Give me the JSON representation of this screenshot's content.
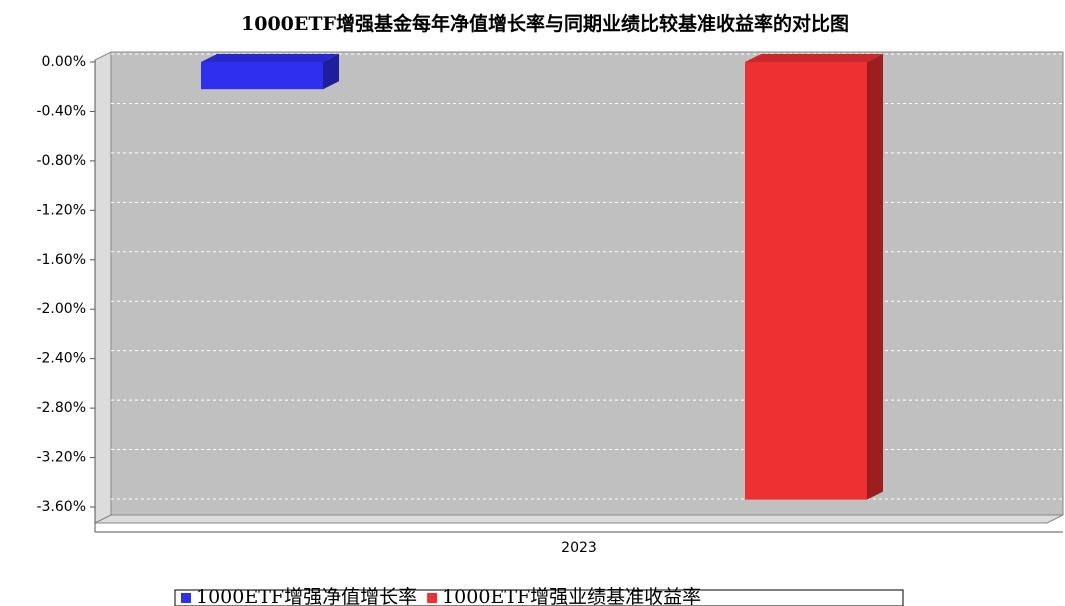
{
  "chart_data": {
    "type": "bar",
    "title": "1000ETF增强基金每年净值增长率与同期业绩比较基准收益率的对比图",
    "categories": [
      "2023"
    ],
    "series": [
      {
        "name": "1000ETF增强净值增长率",
        "color": "#2f2ff0",
        "values": [
          -0.22
        ]
      },
      {
        "name": "1000ETF增强业绩基准收益率",
        "color": "#ee3033",
        "values": [
          -3.54
        ]
      }
    ],
    "ylim": [
      -3.6,
      0
    ],
    "yticks": [
      {
        "value": 0,
        "label": "0.00%"
      },
      {
        "value": -0.4,
        "label": "-0.40%"
      },
      {
        "value": -0.8,
        "label": "-0.80%"
      },
      {
        "value": -1.2,
        "label": "-1.20%"
      },
      {
        "value": -1.6,
        "label": "-1.60%"
      },
      {
        "value": -2.0,
        "label": "-2.00%"
      },
      {
        "value": -2.4,
        "label": "-2.40%"
      },
      {
        "value": -2.8,
        "label": "-2.80%"
      },
      {
        "value": -3.2,
        "label": "-3.20%"
      },
      {
        "value": -3.6,
        "label": "-3.60%"
      }
    ],
    "grid": true,
    "legend": "bottom"
  }
}
